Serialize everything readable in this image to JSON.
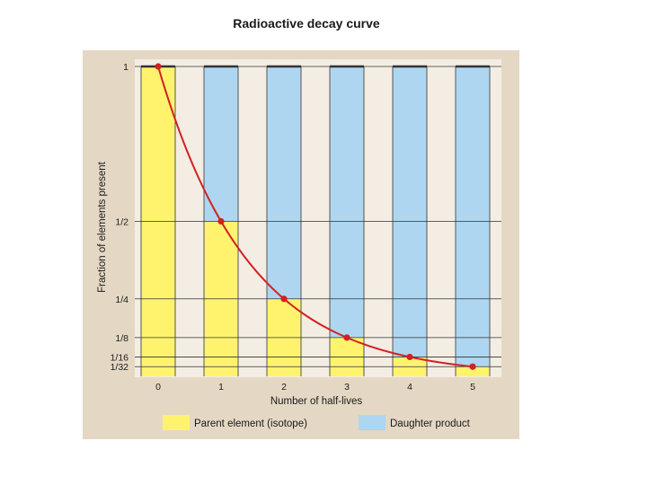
{
  "chart_data": {
    "type": "bar",
    "title": "Radioactive decay curve",
    "xlabel": "Number of half-lives",
    "ylabel": "Fraction of elements present",
    "categories": [
      "0",
      "1",
      "2",
      "3",
      "4",
      "5"
    ],
    "ylim": [
      0,
      1
    ],
    "yticks": [
      {
        "value": 1,
        "label": "1"
      },
      {
        "value": 0.5,
        "label": "1/2"
      },
      {
        "value": 0.25,
        "label": "1/4"
      },
      {
        "value": 0.125,
        "label": "1/8"
      },
      {
        "value": 0.0625,
        "label": "1/16"
      },
      {
        "value": 0.03125,
        "label": "1/32"
      }
    ],
    "series": [
      {
        "name": "Parent element (isotope)",
        "color": "#fff36e",
        "values": [
          1,
          0.5,
          0.25,
          0.125,
          0.0625,
          0.03125
        ]
      },
      {
        "name": "Daughter product",
        "color": "#aed6f0",
        "values": [
          0,
          0.5,
          0.75,
          0.875,
          0.9375,
          0.96875
        ]
      }
    ],
    "curve": {
      "color": "#d42020",
      "points": [
        1,
        0.5,
        0.25,
        0.125,
        0.0625,
        0.03125
      ]
    },
    "legend_position": "bottom",
    "colors": {
      "frame": "#e4d8c4",
      "plot_background": "#f3ede4",
      "gridline": "#333333"
    }
  }
}
